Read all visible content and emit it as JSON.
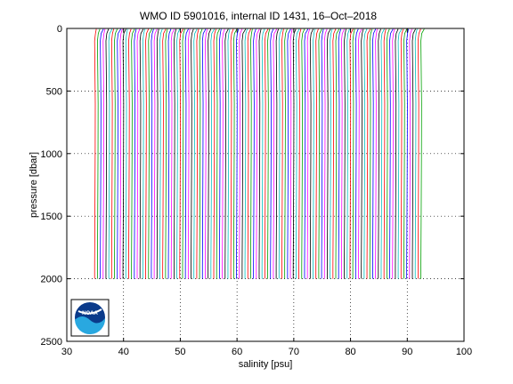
{
  "chart_data": {
    "type": "line",
    "title": "WMO ID 5901016, internal ID 1431, 16–Oct–2018",
    "xlabel": "salinity [psu]",
    "ylabel": "pressure [dbar]",
    "xlim": [
      30,
      100
    ],
    "ylim": [
      0,
      2500
    ],
    "y_reversed": true,
    "grid": "dotted",
    "xticks": [
      "30",
      "40",
      "50",
      "60",
      "70",
      "80",
      "90",
      "100"
    ],
    "yticks": [
      "0",
      "500",
      "1000",
      "1500",
      "2000",
      "2500"
    ],
    "profile_offset_psu": 0.5,
    "first_profile_base_salinity": 34.9,
    "profile_count": 116,
    "series_colors": [
      "#ff0000",
      "#00a000",
      "#0000ff",
      "#ff00ff",
      "#000000",
      "#00c0c0"
    ],
    "template_profile": {
      "pressure": [
        5,
        40,
        100,
        300,
        600,
        1000,
        1500,
        1900,
        2000
      ],
      "salinity_delta": [
        0.3,
        0.15,
        0.0,
        0.05,
        0.12,
        0.1,
        0.05,
        0.0,
        0.0
      ]
    }
  },
  "logo": {
    "text": "NOAA",
    "bg": "#ffffff",
    "ring": "#0a3a8a",
    "wave": "#29a8e0"
  }
}
